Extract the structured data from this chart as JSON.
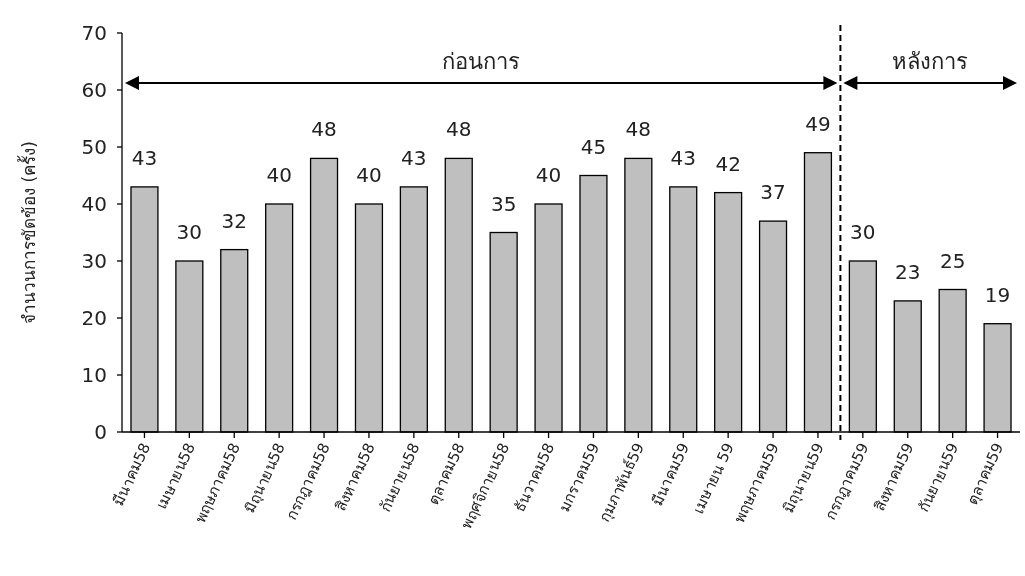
{
  "chart_data": {
    "type": "bar",
    "ylabel": "จำนวนการขัดข้อง (ครั้ง)",
    "categories": [
      "มีนาคม58",
      "เมษายน58",
      "พฤษภาคม58",
      "มิถุนายน58",
      "กรกฎาคม58",
      "สิงหาคม58",
      "กันยายน58",
      "ตุลาคม58",
      "พฤศจิกายน58",
      "ธันวาคม58",
      "มกราคม59",
      "กุมภาพันธ์59",
      "มีนาคม59",
      "เมษายน 59",
      "พฤษภาคม59",
      "มิถุนายน59",
      "กรกฎาคม59",
      "สิงหาคม59",
      "กันยายน59",
      "ตุลาคม59"
    ],
    "values": [
      43,
      30,
      32,
      40,
      48,
      40,
      43,
      48,
      35,
      40,
      45,
      48,
      43,
      42,
      37,
      49,
      30,
      23,
      25,
      19
    ],
    "color": "#bfbfbf",
    "ylim": [
      0,
      70
    ],
    "yticks": [
      0,
      10,
      20,
      30,
      40,
      50,
      60,
      70
    ],
    "data_labels": true,
    "annotations": [
      "ก่อนการ",
      "หลังการ"
    ]
  }
}
